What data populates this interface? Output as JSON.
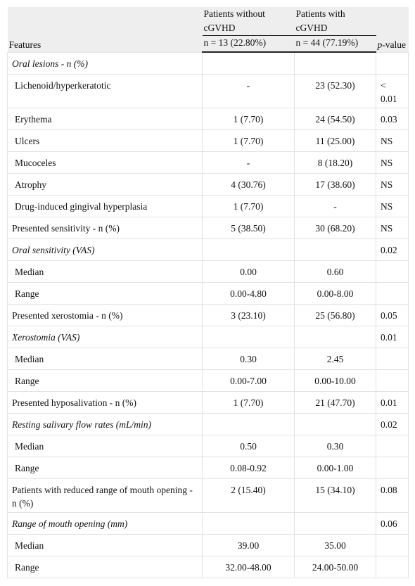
{
  "table": {
    "header": {
      "features": "Features",
      "group1": "Patients without cGVHD",
      "group2": "Patients with cGVHD",
      "n1": "n = 13 (22.80%)",
      "n2": "n = 44 (77.19%)",
      "p_value": {
        "italic": "p",
        "rest": "-value"
      }
    },
    "rows": [
      {
        "label": "Oral lesions - n (%)",
        "italic": true,
        "indent": false,
        "cells": [
          null,
          null,
          null
        ]
      },
      {
        "label": "Lichenoid/hyperkeratotic",
        "italic": false,
        "indent": true,
        "cells": [
          "-",
          "23 (52.30)",
          "< 0.01"
        ]
      },
      {
        "label": "Erythema",
        "italic": false,
        "indent": true,
        "cells": [
          "1 (7.70)",
          "24 (54.50)",
          "0.03"
        ]
      },
      {
        "label": "Ulcers",
        "italic": false,
        "indent": true,
        "cells": [
          "1 (7.70)",
          "11 (25.00)",
          "NS"
        ]
      },
      {
        "label": "Mucoceles",
        "italic": false,
        "indent": true,
        "cells": [
          "-",
          "8 (18.20)",
          "NS"
        ]
      },
      {
        "label": "Atrophy",
        "italic": false,
        "indent": true,
        "cells": [
          "4 (30.76)",
          "17 (38.60)",
          "NS"
        ]
      },
      {
        "label": "Drug-induced gingival hyperplasia",
        "italic": false,
        "indent": true,
        "cells": [
          "1 (7.70)",
          "-",
          "NS"
        ]
      },
      {
        "label": "Presented sensitivity - n (%)",
        "italic": false,
        "indent": false,
        "cells": [
          "5 (38.50)",
          "30 (68.20)",
          "NS"
        ]
      },
      {
        "label": "Oral sensitivity (VAS)",
        "italic": true,
        "indent": false,
        "cells": [
          null,
          null,
          "0.02"
        ]
      },
      {
        "label": "Median",
        "italic": false,
        "indent": true,
        "cells": [
          "0.00",
          "0.60",
          null
        ]
      },
      {
        "label": "Range",
        "italic": false,
        "indent": true,
        "cells": [
          "0.00-4.80",
          "0.00-8.00",
          null
        ]
      },
      {
        "label": "Presented xerostomia - n (%)",
        "italic": false,
        "indent": false,
        "cells": [
          "3 (23.10)",
          "25 (56.80)",
          "0.05"
        ]
      },
      {
        "label": "Xerostomia (VAS)",
        "italic": true,
        "indent": false,
        "cells": [
          null,
          null,
          "0.01"
        ]
      },
      {
        "label": "Median",
        "italic": false,
        "indent": true,
        "cells": [
          "0.30",
          "2.45",
          null
        ]
      },
      {
        "label": "Range",
        "italic": false,
        "indent": true,
        "cells": [
          "0.00-7.00",
          "0.00-10.00",
          null
        ]
      },
      {
        "label": "Presented hyposalivation - n (%)",
        "italic": false,
        "indent": false,
        "cells": [
          "1 (7.70)",
          "21 (47.70)",
          "0.01"
        ]
      },
      {
        "label": "Resting salivary flow rates (mL/min)",
        "italic": true,
        "indent": false,
        "cells": [
          null,
          null,
          "0.02"
        ]
      },
      {
        "label": "Median",
        "italic": false,
        "indent": true,
        "cells": [
          "0.50",
          "0.30",
          null
        ]
      },
      {
        "label": "Range",
        "italic": false,
        "indent": true,
        "cells": [
          "0.08-0.92",
          "0.00-1.00",
          null
        ]
      },
      {
        "label": "Patients with reduced range of mouth opening - n (%)",
        "italic": false,
        "indent": false,
        "cells": [
          "2 (15.40)",
          "15 (34.10)",
          "0.08"
        ]
      },
      {
        "label": "Range of mouth opening (mm)",
        "italic": true,
        "indent": false,
        "cells": [
          null,
          null,
          "0.06"
        ]
      },
      {
        "label": "Median",
        "italic": false,
        "indent": true,
        "cells": [
          "39.00",
          "35.00",
          null
        ]
      },
      {
        "label": "Range",
        "italic": false,
        "indent": true,
        "cells": [
          "32.00-48.00",
          "24.00-50.00",
          null
        ]
      }
    ]
  }
}
